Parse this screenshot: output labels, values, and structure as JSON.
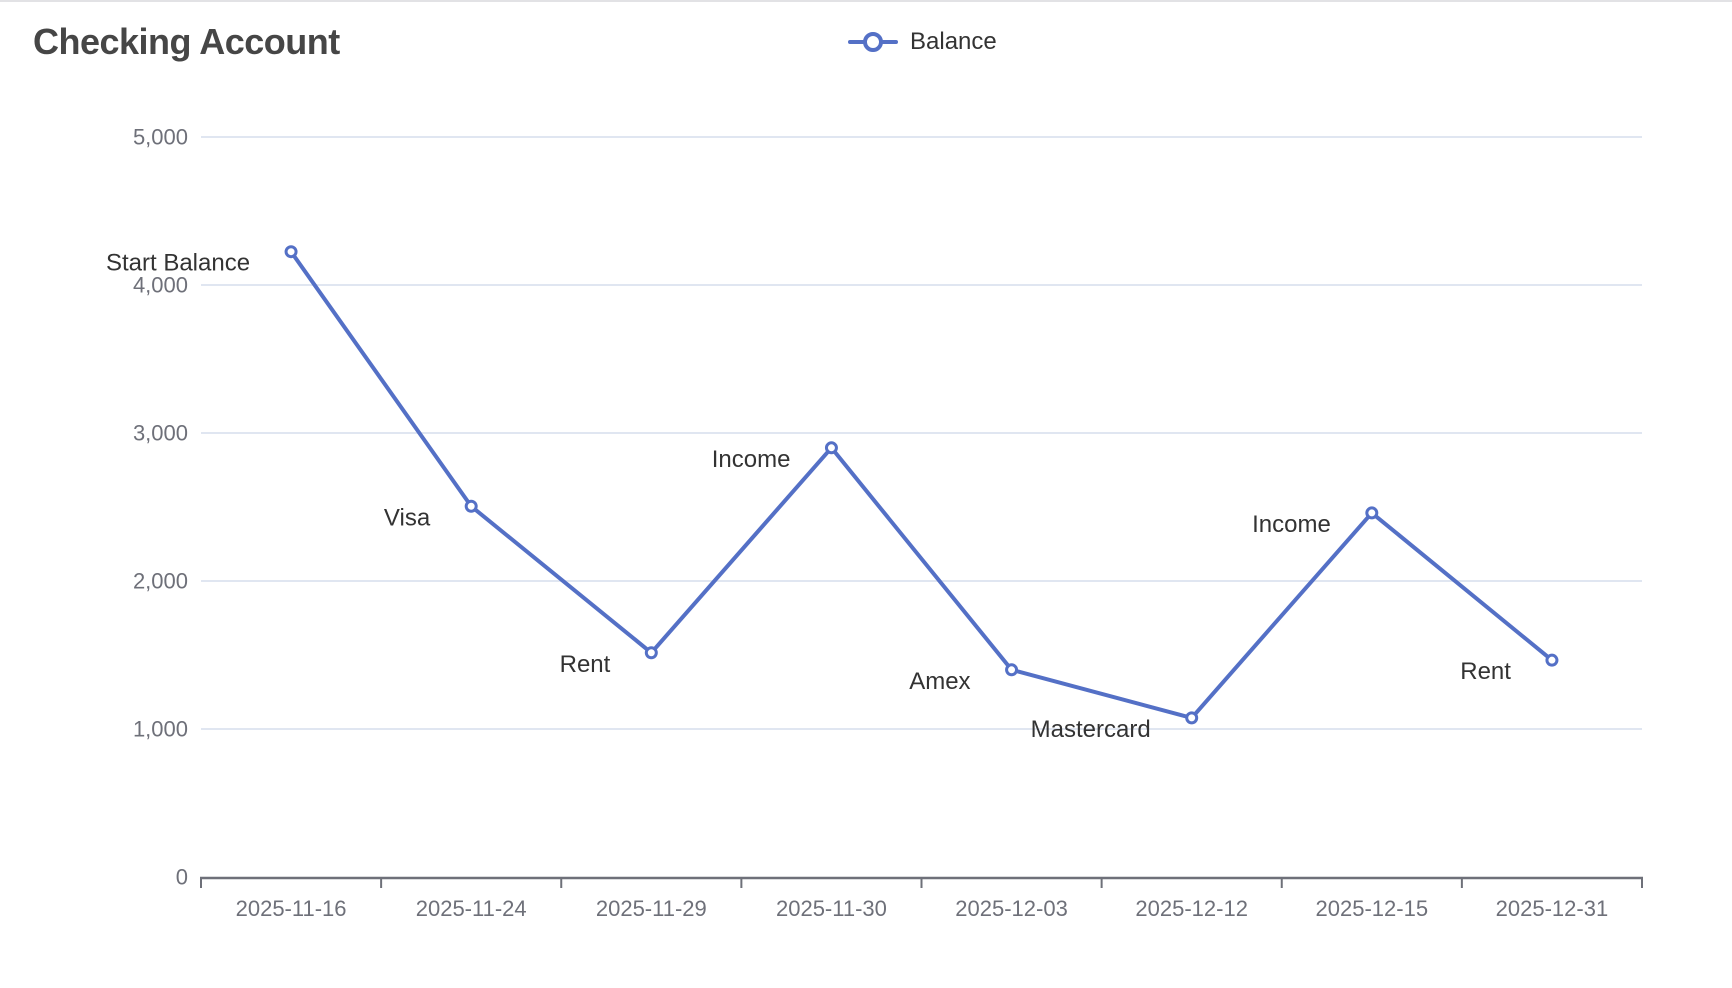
{
  "chart_data": {
    "type": "line",
    "title": "Checking Account",
    "x": [
      "2025-11-16",
      "2025-11-24",
      "2025-11-29",
      "2025-11-30",
      "2025-12-03",
      "2025-12-12",
      "2025-12-15",
      "2025-12-31"
    ],
    "series": [
      {
        "name": "Balance",
        "color": "#5470C6",
        "values": [
          4225,
          2505,
          1515,
          2900,
          1400,
          1075,
          2460,
          1465
        ],
        "point_labels": [
          "Start Balance",
          "Visa",
          "Rent",
          "Income",
          "Amex",
          "Mastercard",
          "Income",
          "Rent"
        ]
      }
    ],
    "xlabel": "",
    "ylabel": "",
    "ylim": [
      0,
      5000
    ],
    "y_tick_step": 1000,
    "y_tick_labels": [
      "0",
      "1,000",
      "2,000",
      "3,000",
      "4,000",
      "5,000"
    ],
    "grid": true,
    "legend_position": "top-center",
    "marker": "open-circle"
  },
  "colors": {
    "accent": "#5470C6",
    "grid": "#E0E6F1",
    "axis": "#6E7079",
    "title": "#464646",
    "point_label": "#333333",
    "legend_text": "#333333",
    "panel_border": "#E2E2E5",
    "marker_fill": "#FFFFFF"
  }
}
